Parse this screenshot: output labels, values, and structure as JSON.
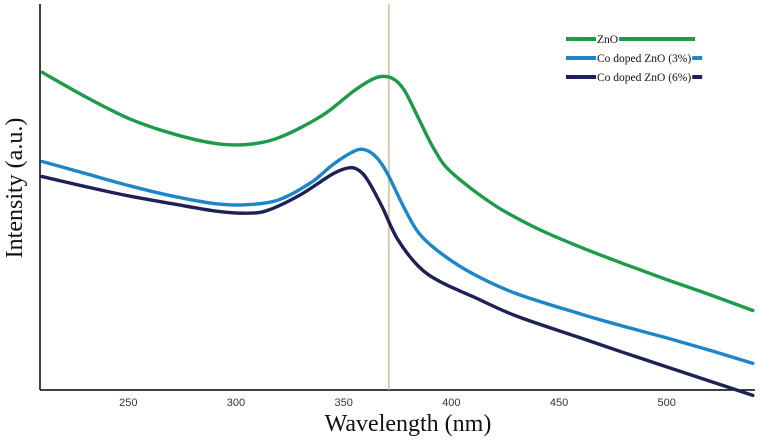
{
  "chart_data": {
    "type": "line",
    "title": "",
    "xlabel": "Wavelength (nm)",
    "ylabel": "Intensity (a.u.)",
    "xlim": [
      209,
      541
    ],
    "ylim": [
      0,
      100
    ],
    "xticks": [
      250,
      300,
      350,
      400,
      450,
      500
    ],
    "yticks_shown": false,
    "grid": false,
    "legend_position": "top-right",
    "reference_line": {
      "x": 371,
      "color": "#d4b48c"
    },
    "series": [
      {
        "name": "ZnO",
        "color": "#1e9a4a",
        "x": [
          210,
          230,
          250,
          270,
          290,
          305,
          320,
          340,
          355,
          365,
          372,
          378,
          385,
          392,
          400,
          420,
          440,
          460,
          480,
          500,
          520,
          540
        ],
        "y": [
          82.3,
          76.0,
          70.4,
          66.5,
          63.9,
          63.6,
          65.4,
          71.1,
          77.6,
          80.9,
          80.9,
          77.8,
          70.1,
          62.4,
          56.4,
          47.9,
          41.8,
          37.0,
          32.7,
          28.6,
          24.7,
          20.6
        ]
      },
      {
        "name": "Co doped ZnO (3%)",
        "color": "#1c86c9",
        "x": [
          210,
          230,
          250,
          270,
          290,
          305,
          320,
          335,
          345,
          355,
          360,
          365,
          370,
          378,
          385,
          395,
          410,
          430,
          460,
          480,
          500,
          520,
          540
        ],
        "y": [
          59.2,
          56.1,
          53.0,
          50.3,
          48.3,
          48.0,
          49.3,
          53.8,
          58.4,
          61.9,
          62.2,
          60.4,
          56.4,
          47.3,
          40.6,
          35.5,
          30.1,
          25.0,
          19.7,
          16.5,
          13.5,
          10.3,
          6.9
        ]
      },
      {
        "name": "Co doped ZnO (6%)",
        "color": "#1e2058",
        "x": [
          210,
          230,
          250,
          270,
          290,
          305,
          315,
          330,
          345,
          353,
          358,
          362,
          368,
          375,
          385,
          395,
          410,
          430,
          460,
          480,
          500,
          520,
          540
        ],
        "y": [
          55.3,
          52.7,
          50.3,
          48.3,
          46.4,
          45.8,
          46.6,
          50.6,
          56.0,
          57.6,
          56.5,
          53.6,
          47.3,
          39.1,
          31.9,
          28.0,
          24.2,
          19.2,
          13.5,
          9.7,
          6.0,
          2.3,
          -1.4
        ]
      }
    ]
  }
}
